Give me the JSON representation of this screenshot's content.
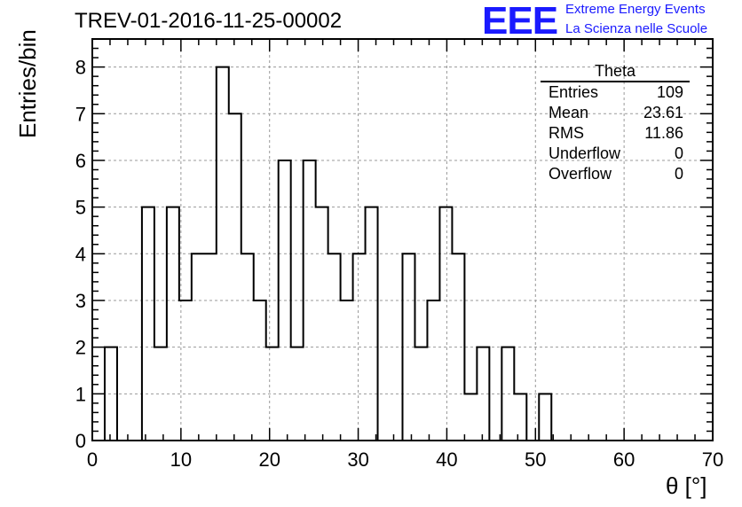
{
  "title": "TREV-01-2016-11-25-00002",
  "logo": {
    "mark": "EEE",
    "line1": "Extreme Energy Events",
    "line2": "La Scienza nelle Scuole",
    "color": "#1a1aff"
  },
  "stats": {
    "name": "Theta",
    "rows": [
      {
        "label": "Entries",
        "value": "109"
      },
      {
        "label": "Mean",
        "value": "23.61"
      },
      {
        "label": "RMS",
        "value": "11.86"
      },
      {
        "label": "Underflow",
        "value": "0"
      },
      {
        "label": "Overflow",
        "value": "0"
      }
    ]
  },
  "chart_data": {
    "type": "bar",
    "histogram": true,
    "xlabel": "θ [°]",
    "ylabel": "Entries/bin",
    "xlim": [
      0,
      70
    ],
    "ylim": [
      0,
      8.6
    ],
    "bin_width": 1.4,
    "bin_edges_start": 0,
    "xticks": [
      "0",
      "10",
      "20",
      "30",
      "40",
      "50",
      "60",
      "70"
    ],
    "yticks": [
      "0",
      "1",
      "2",
      "3",
      "4",
      "5",
      "6",
      "7",
      "8"
    ],
    "grid": true,
    "values": [
      0,
      2,
      0,
      0,
      5,
      2,
      5,
      3,
      4,
      4,
      8,
      7,
      4,
      3,
      2,
      6,
      2,
      6,
      5,
      4,
      3,
      4,
      5,
      0,
      0,
      4,
      2,
      3,
      5,
      4,
      1,
      2,
      0,
      2,
      1,
      0,
      1,
      0,
      0,
      0,
      0,
      0,
      0,
      0,
      0,
      0,
      0,
      0,
      0,
      0
    ]
  }
}
